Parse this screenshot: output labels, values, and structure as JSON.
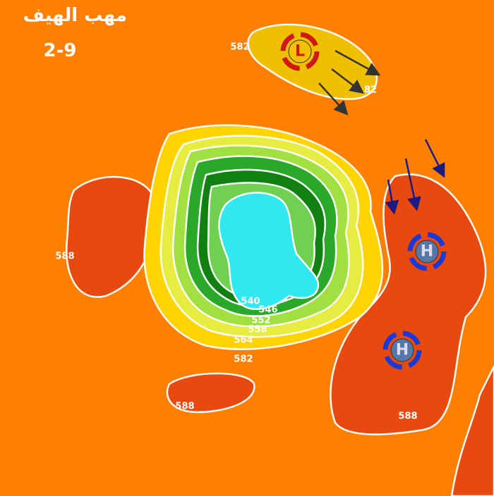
{
  "header": {
    "title": "مهب الهيف",
    "date": "2-9"
  },
  "contour_labels": [
    "582",
    "82",
    "588",
    "588",
    "588",
    "540",
    "546",
    "552",
    "558",
    "564",
    "582"
  ],
  "systems": [
    {
      "label": "L"
    },
    {
      "label": "H"
    },
    {
      "label": "H"
    }
  ]
}
